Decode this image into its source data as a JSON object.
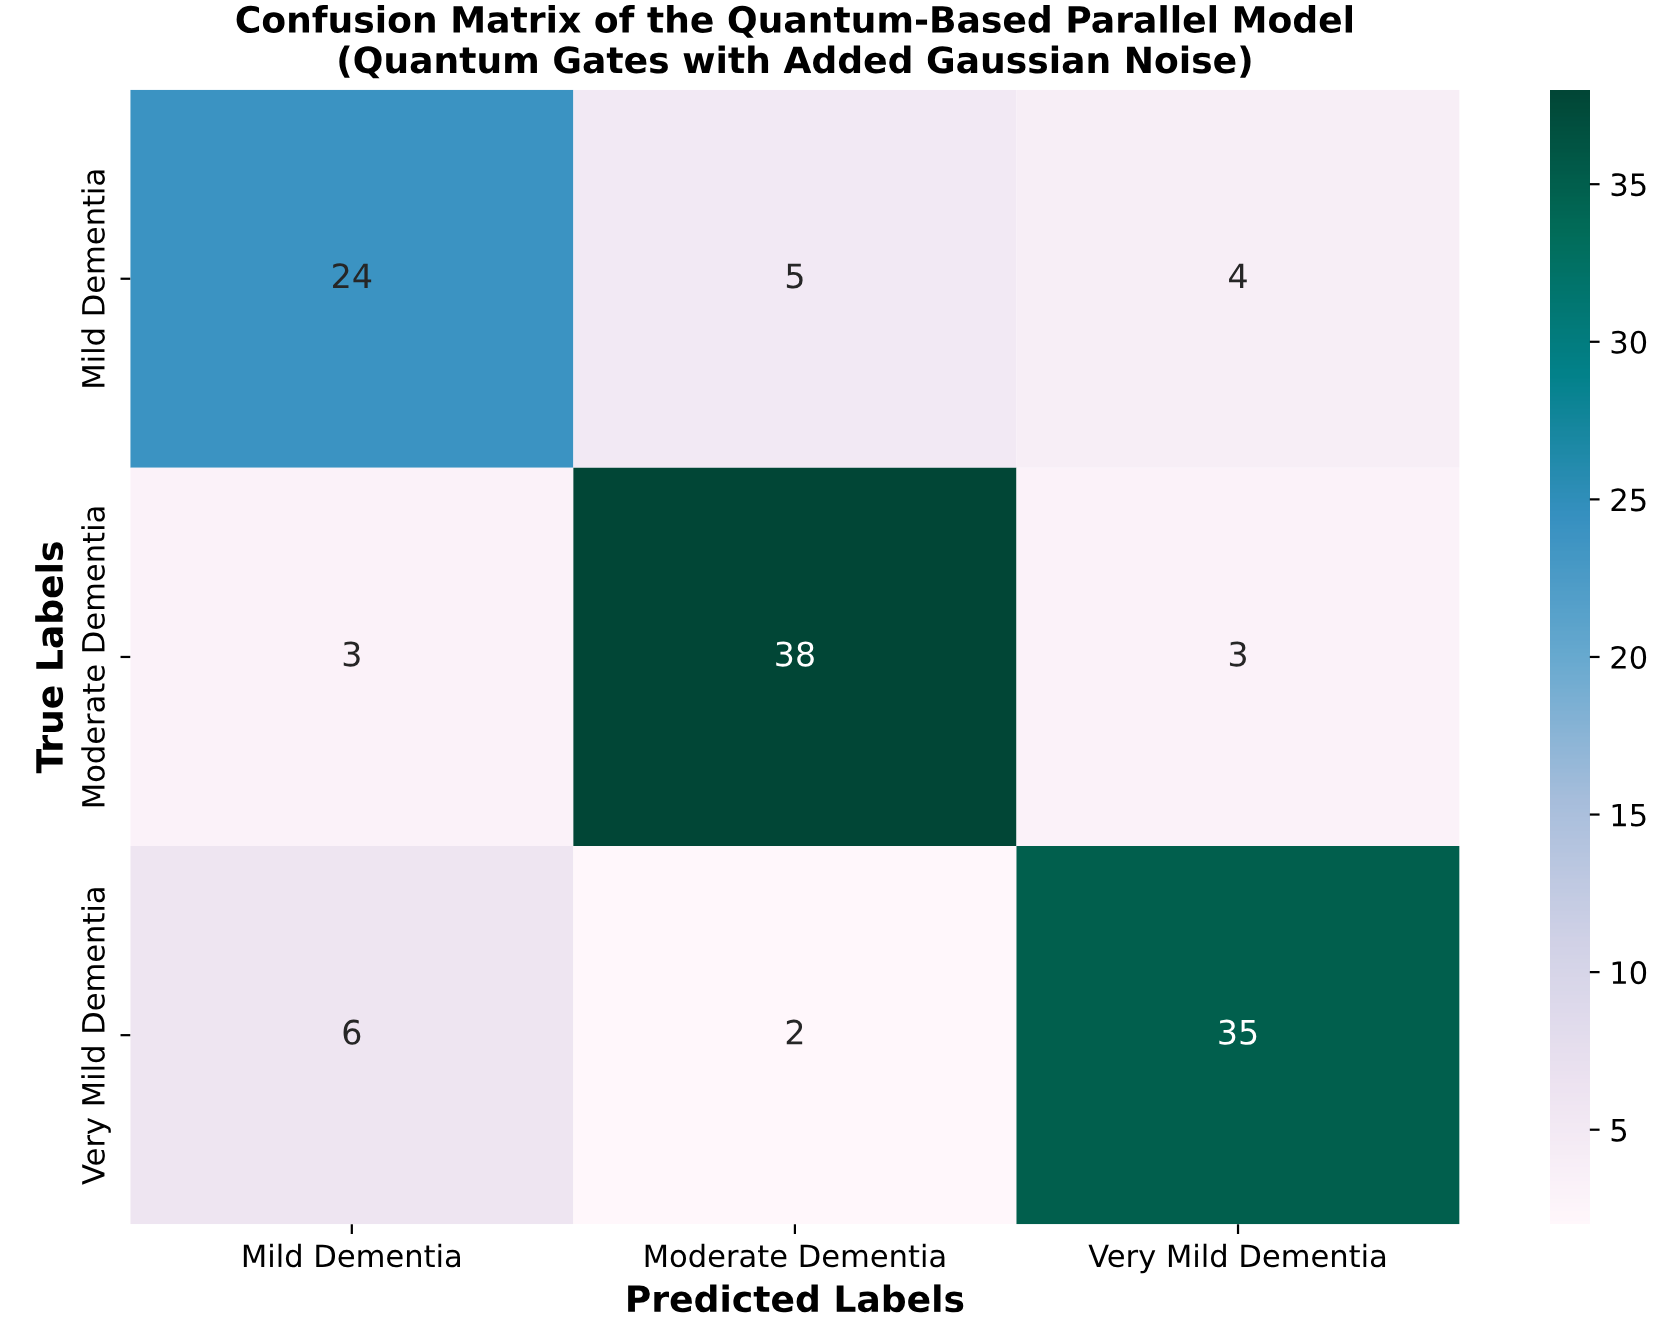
{
  "chart_data": {
    "type": "heatmap",
    "title": "Confusion Matrix of the Quantum-Based Parallel Model\n(Quantum Gates with Added Gaussian Noise)",
    "xlabel": "Predicted Labels",
    "ylabel": "True Labels",
    "categories": [
      "Mild Dementia",
      "Moderate Dementia",
      "Very Mild Dementia"
    ],
    "y_categories": [
      "Mild Dementia",
      "Moderate Dementia",
      "Very Mild Dementia"
    ],
    "cells": [
      [
        24,
        5,
        4
      ],
      [
        3,
        38,
        3
      ],
      [
        6,
        2,
        35
      ]
    ],
    "data_labels": true,
    "clim": [
      2,
      38
    ],
    "cticks": [
      5,
      10,
      15,
      20,
      25,
      30,
      35
    ]
  }
}
